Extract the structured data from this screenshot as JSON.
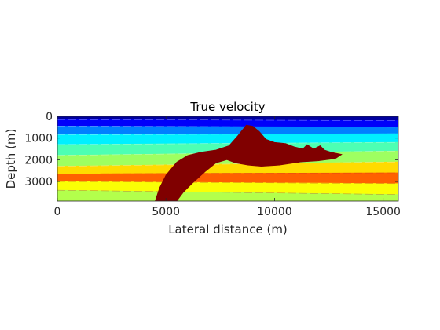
{
  "chart_data": {
    "type": "heatmap",
    "title": "True velocity",
    "xlabel": "Lateral distance (m)",
    "ylabel": "Depth (m)",
    "xlim": [
      0,
      15700
    ],
    "ylim": [
      3900,
      0
    ],
    "x_ticks": [
      0,
      5000,
      10000,
      15000
    ],
    "y_ticks": [
      0,
      1000,
      2000,
      3000
    ],
    "colormap": "jet",
    "grid": false,
    "legend": "none",
    "velocity_layers": [
      {
        "depth_left": 150,
        "depth_right": 200,
        "level": 0.03
      },
      {
        "depth_left": 450,
        "depth_right": 500,
        "level": 0.12
      },
      {
        "depth_left": 850,
        "depth_right": 800,
        "level": 0.25
      },
      {
        "depth_left": 1300,
        "depth_right": 1200,
        "level": 0.36
      },
      {
        "depth_left": 1800,
        "depth_right": 1600,
        "level": 0.45
      },
      {
        "depth_left": 2300,
        "depth_right": 2100,
        "level": 0.53
      },
      {
        "depth_left": 2650,
        "depth_right": 2600,
        "level": 0.66
      },
      {
        "depth_left": 3000,
        "depth_right": 3100,
        "level": 0.78
      },
      {
        "depth_left": 3400,
        "depth_right": 3600,
        "level": 0.62
      },
      {
        "depth_left": 3900,
        "depth_right": 3900,
        "level": 0.55
      }
    ],
    "salt_body": {
      "level": 1.0,
      "outline": [
        [
          4500,
          3900
        ],
        [
          4700,
          3300
        ],
        [
          5000,
          2700
        ],
        [
          5500,
          2100
        ],
        [
          6000,
          1800
        ],
        [
          6600,
          1650
        ],
        [
          7300,
          1550
        ],
        [
          7900,
          1350
        ],
        [
          8300,
          900
        ],
        [
          8700,
          400
        ],
        [
          9000,
          450
        ],
        [
          9300,
          700
        ],
        [
          9600,
          1050
        ],
        [
          10000,
          1200
        ],
        [
          10500,
          1250
        ],
        [
          10900,
          1400
        ],
        [
          11300,
          1500
        ],
        [
          11500,
          1300
        ],
        [
          11800,
          1500
        ],
        [
          12100,
          1350
        ],
        [
          12300,
          1550
        ],
        [
          12600,
          1650
        ],
        [
          13100,
          1750
        ],
        [
          12800,
          1950
        ],
        [
          12000,
          2050
        ],
        [
          11200,
          2100
        ],
        [
          10200,
          2250
        ],
        [
          9400,
          2300
        ],
        [
          8800,
          2250
        ],
        [
          8200,
          2150
        ],
        [
          7800,
          2000
        ],
        [
          7300,
          2150
        ],
        [
          6800,
          2550
        ],
        [
          6200,
          3100
        ],
        [
          5800,
          3500
        ],
        [
          5500,
          3900
        ]
      ]
    }
  }
}
